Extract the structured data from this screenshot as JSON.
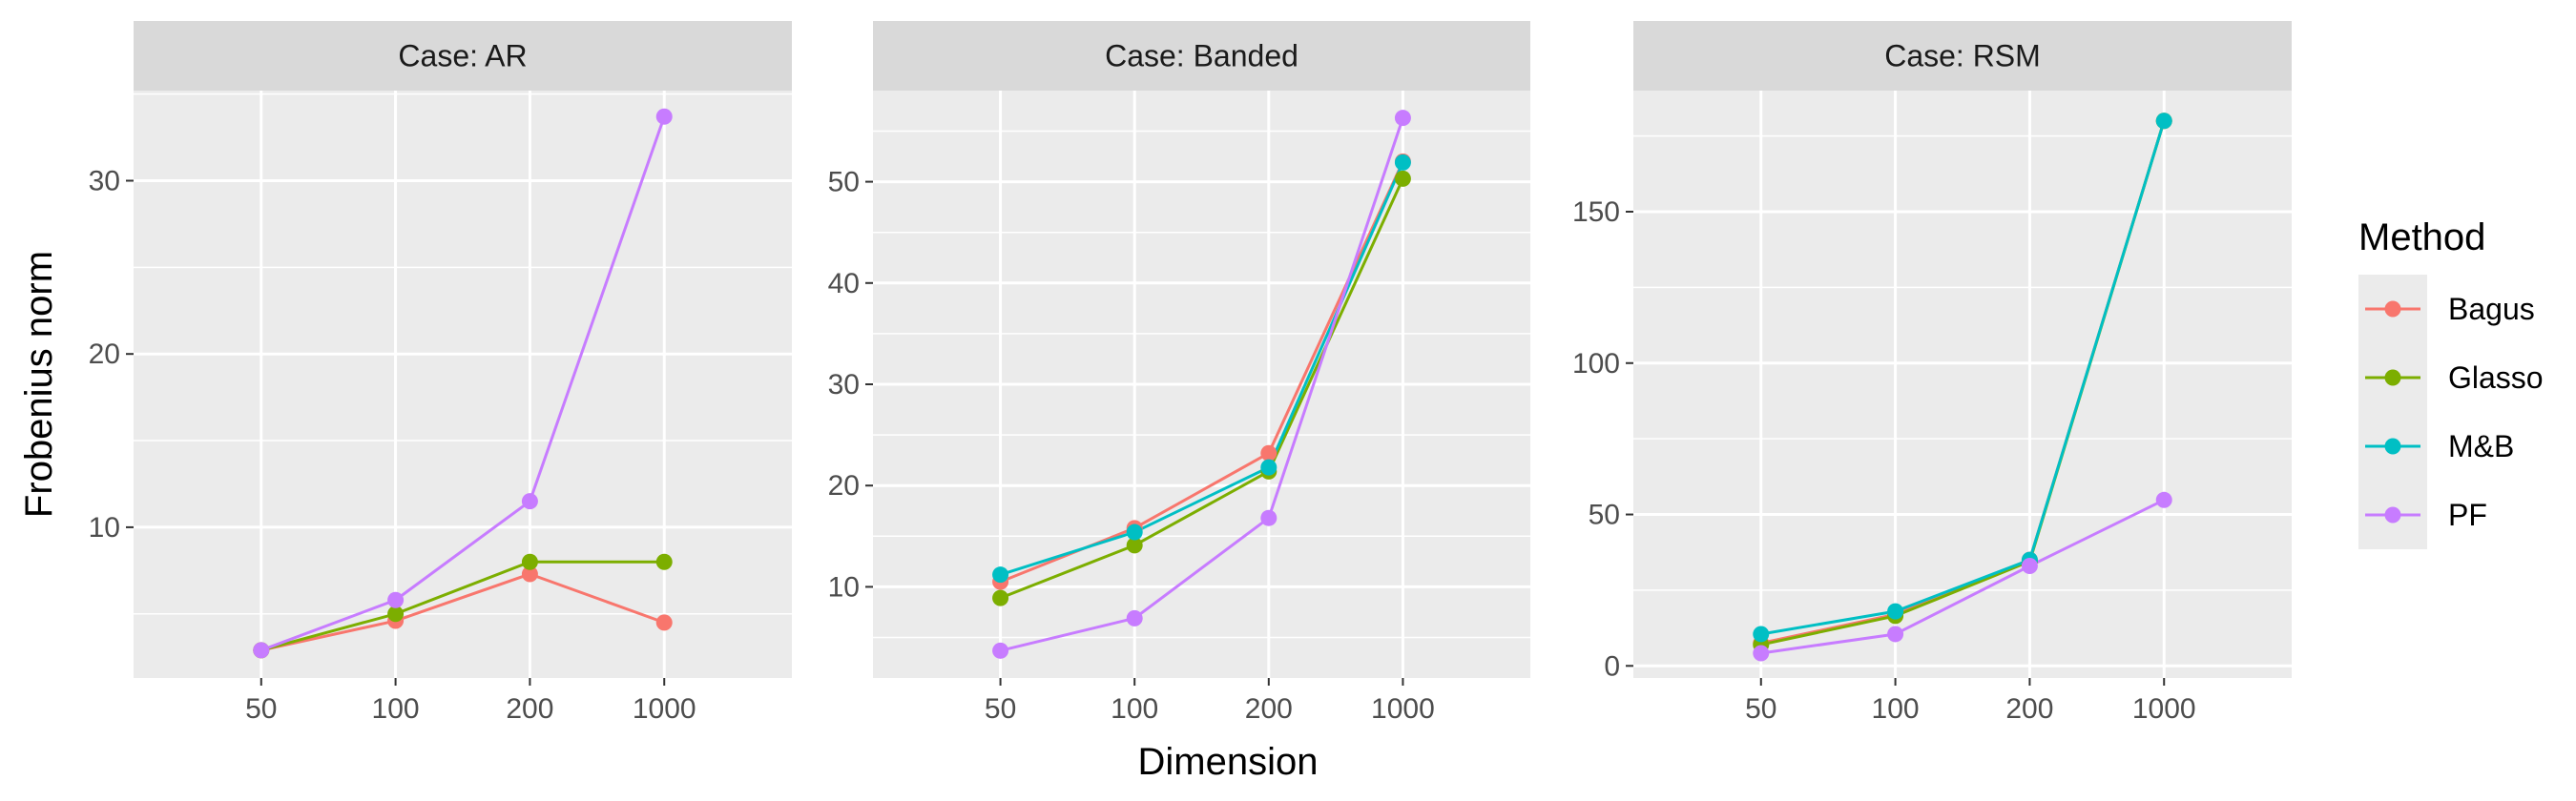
{
  "chart_data": {
    "type": "line",
    "x_categories": [
      "50",
      "100",
      "200",
      "1000"
    ],
    "xlabel": "Dimension",
    "ylabel": "Frobenius norm",
    "legend": {
      "title": "Method",
      "position": "right",
      "entries": [
        {
          "name": "Bagus",
          "color": "#F8766D"
        },
        {
          "name": "Glasso",
          "color": "#7CAE00"
        },
        {
          "name": "M&B",
          "color": "#00BFC4"
        },
        {
          "name": "PF",
          "color": "#C77CFF"
        }
      ]
    },
    "grid": true,
    "panels": [
      {
        "strip": "Case: AR",
        "ylim": [
          1.3,
          35.2
        ],
        "yticks": [
          10,
          20,
          30
        ],
        "series": [
          {
            "name": "Bagus",
            "values": [
              2.9,
              4.6,
              7.3,
              4.5
            ]
          },
          {
            "name": "Glasso",
            "values": [
              2.9,
              5.0,
              8.0,
              8.0
            ]
          },
          {
            "name": "PF",
            "values": [
              2.9,
              5.8,
              11.5,
              33.7
            ]
          }
        ]
      },
      {
        "strip": "Case: Banded",
        "ylim": [
          1.0,
          59.0
        ],
        "yticks": [
          10,
          20,
          30,
          40,
          50
        ],
        "series": [
          {
            "name": "Bagus",
            "values": [
              10.5,
              15.8,
              23.2,
              52.0
            ]
          },
          {
            "name": "Glasso",
            "values": [
              8.9,
              14.1,
              21.4,
              50.3
            ]
          },
          {
            "name": "M&B",
            "values": [
              11.2,
              15.4,
              21.8,
              51.9
            ]
          },
          {
            "name": "PF",
            "values": [
              3.7,
              6.9,
              16.8,
              56.3
            ]
          }
        ]
      },
      {
        "strip": "Case: RSM",
        "ylim": [
          -4.0,
          190.0
        ],
        "yticks": [
          0,
          50,
          100,
          150
        ],
        "series": [
          {
            "name": "Bagus",
            "values": [
              7.5,
              17.0,
              35.0,
              180.0
            ]
          },
          {
            "name": "Glasso",
            "values": [
              7.0,
              16.5,
              34.5,
              180.0
            ]
          },
          {
            "name": "M&B",
            "values": [
              10.5,
              18.0,
              35.0,
              180.0
            ]
          },
          {
            "name": "PF",
            "values": [
              4.2,
              10.5,
              33.0,
              54.8
            ]
          }
        ]
      }
    ]
  }
}
